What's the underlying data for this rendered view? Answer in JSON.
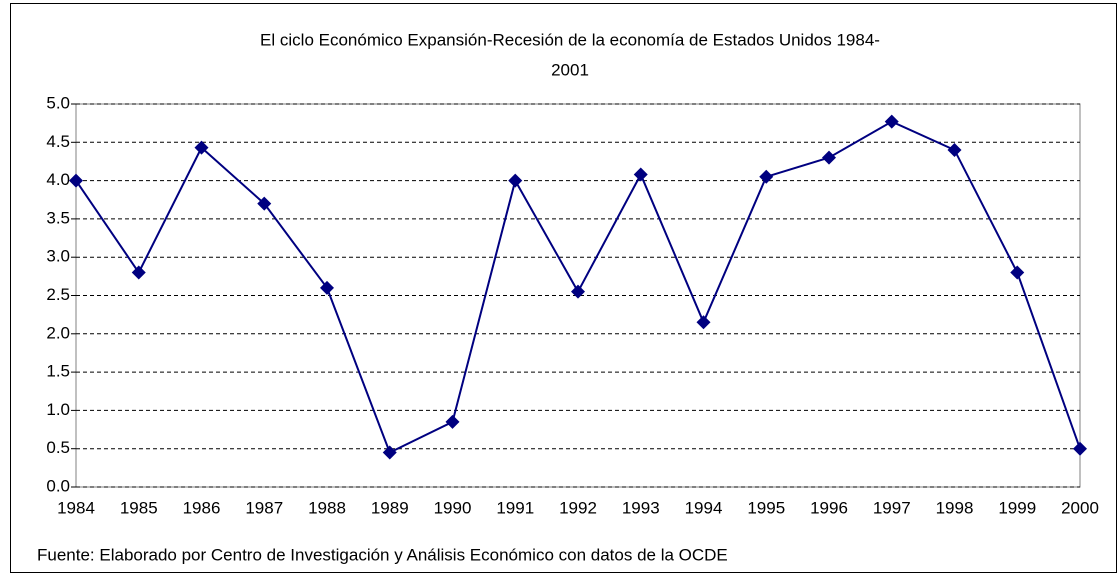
{
  "chart_data": {
    "type": "line",
    "title": [
      "El ciclo Económico Expansión-Recesión de la economía de Estados Unidos 1984-",
      "2001"
    ],
    "categories": [
      "1984",
      "1985",
      "1986",
      "1987",
      "1988",
      "1989",
      "1990",
      "1991",
      "1992",
      "1993",
      "1994",
      "1995",
      "1996",
      "1997",
      "1998",
      "1999",
      "2000"
    ],
    "series": [
      {
        "name": null,
        "color": "#000080",
        "values": [
          4.0,
          2.8,
          4.43,
          3.7,
          2.6,
          0.45,
          0.85,
          4.0,
          2.55,
          4.08,
          2.15,
          4.05,
          4.3,
          4.77,
          4.4,
          2.8,
          0.5
        ]
      }
    ],
    "ylim": [
      0,
      5
    ],
    "yticks": [
      {
        "value": 0,
        "label": "0.0"
      },
      0.5,
      {
        "value": 1,
        "label": "1.0"
      },
      1.5,
      {
        "value": 2,
        "label": "2.0"
      },
      2.5,
      {
        "value": 3,
        "label": "3.0"
      },
      3.5,
      {
        "value": 4,
        "label": "4.0"
      },
      4.5,
      {
        "value": 5,
        "label": "5.0"
      }
    ],
    "grid": true,
    "source": "Fuente: Elaborado por Centro de Investigación y Análisis Económico con datos de la OCDE"
  }
}
